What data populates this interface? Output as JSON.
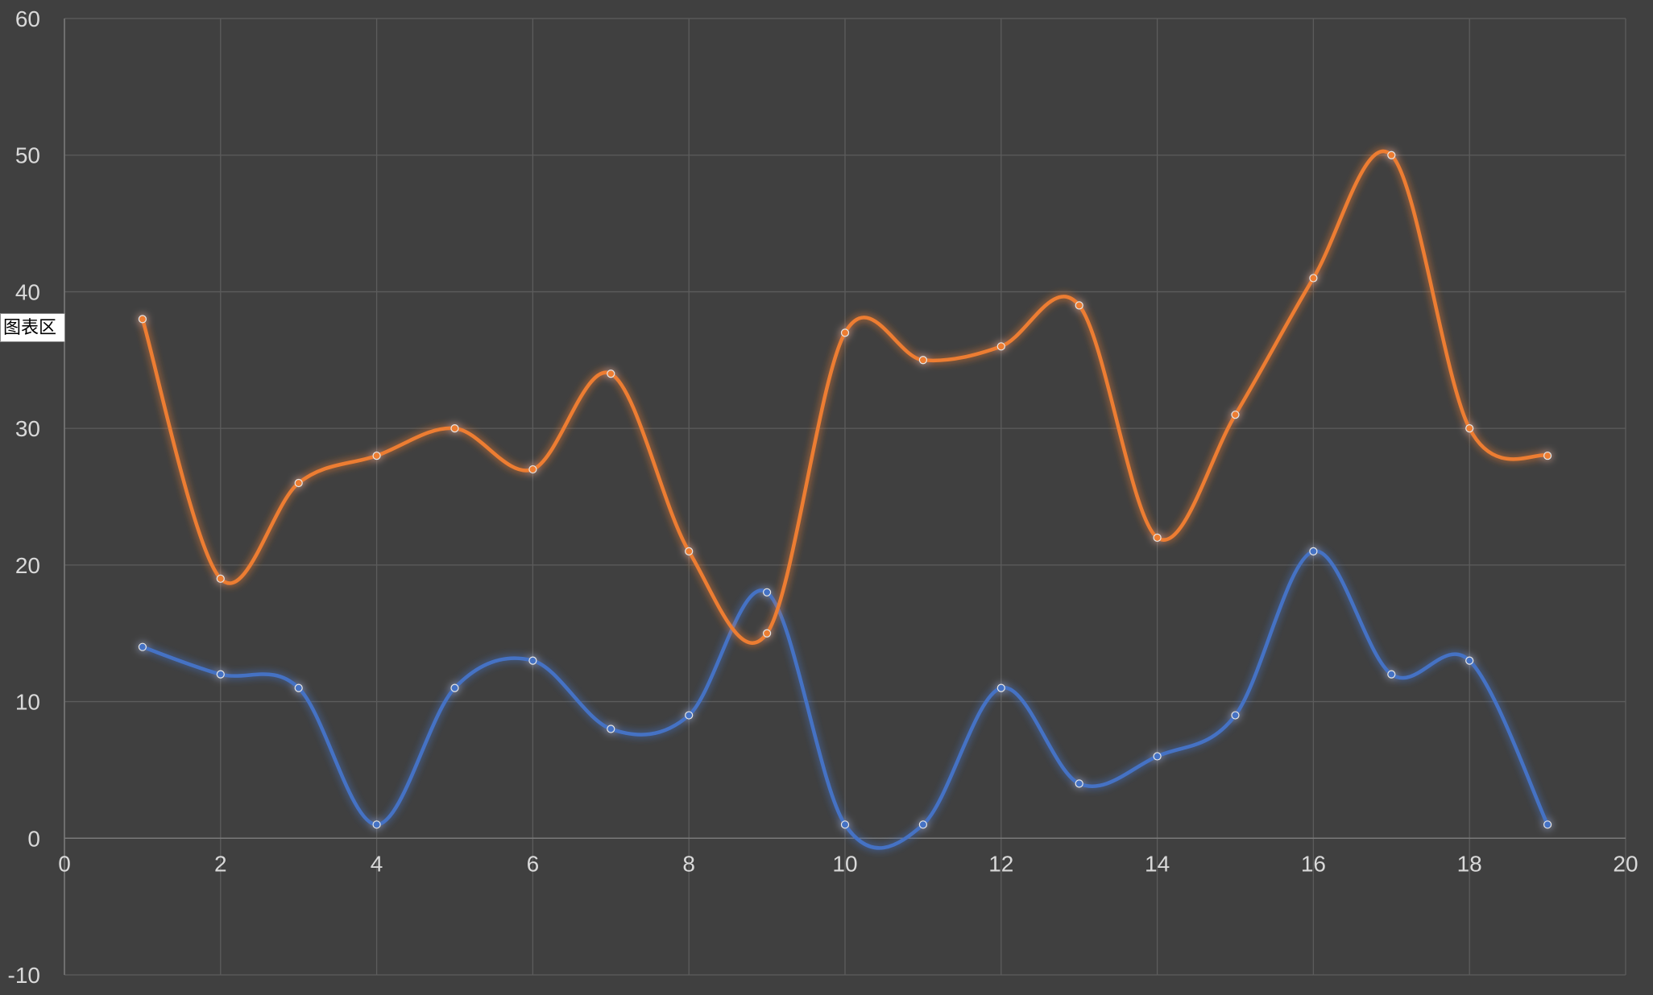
{
  "tooltip": {
    "label": "图表区"
  },
  "colors": {
    "background": "#404040",
    "grid": "#5c5c5c",
    "tick_text": "#d9d9d9"
  },
  "chart_data": {
    "type": "scatter",
    "smooth": true,
    "x": [
      1,
      2,
      3,
      4,
      5,
      6,
      7,
      8,
      9,
      10,
      11,
      12,
      13,
      14,
      15,
      16,
      17,
      18,
      19
    ],
    "series": [
      {
        "color": "#4472c4",
        "values": [
          14,
          12,
          11,
          1,
          11,
          13,
          8,
          9,
          18,
          1,
          1,
          11,
          4,
          6,
          9,
          21,
          12,
          13,
          1
        ]
      },
      {
        "color": "#ed7d31",
        "values": [
          38,
          19,
          26,
          28,
          30,
          27,
          34,
          21,
          15,
          37,
          35,
          36,
          39,
          22,
          31,
          41,
          50,
          30,
          28
        ]
      }
    ],
    "xlim": [
      0,
      20
    ],
    "ylim": [
      -10,
      60
    ],
    "xticks": [
      "0",
      "2",
      "4",
      "6",
      "8",
      "10",
      "12",
      "14",
      "16",
      "18",
      "20"
    ],
    "yticks": [
      "-10",
      "0",
      "10",
      "20",
      "30",
      "40",
      "50",
      "60"
    ],
    "grid": true,
    "legend": "none"
  }
}
